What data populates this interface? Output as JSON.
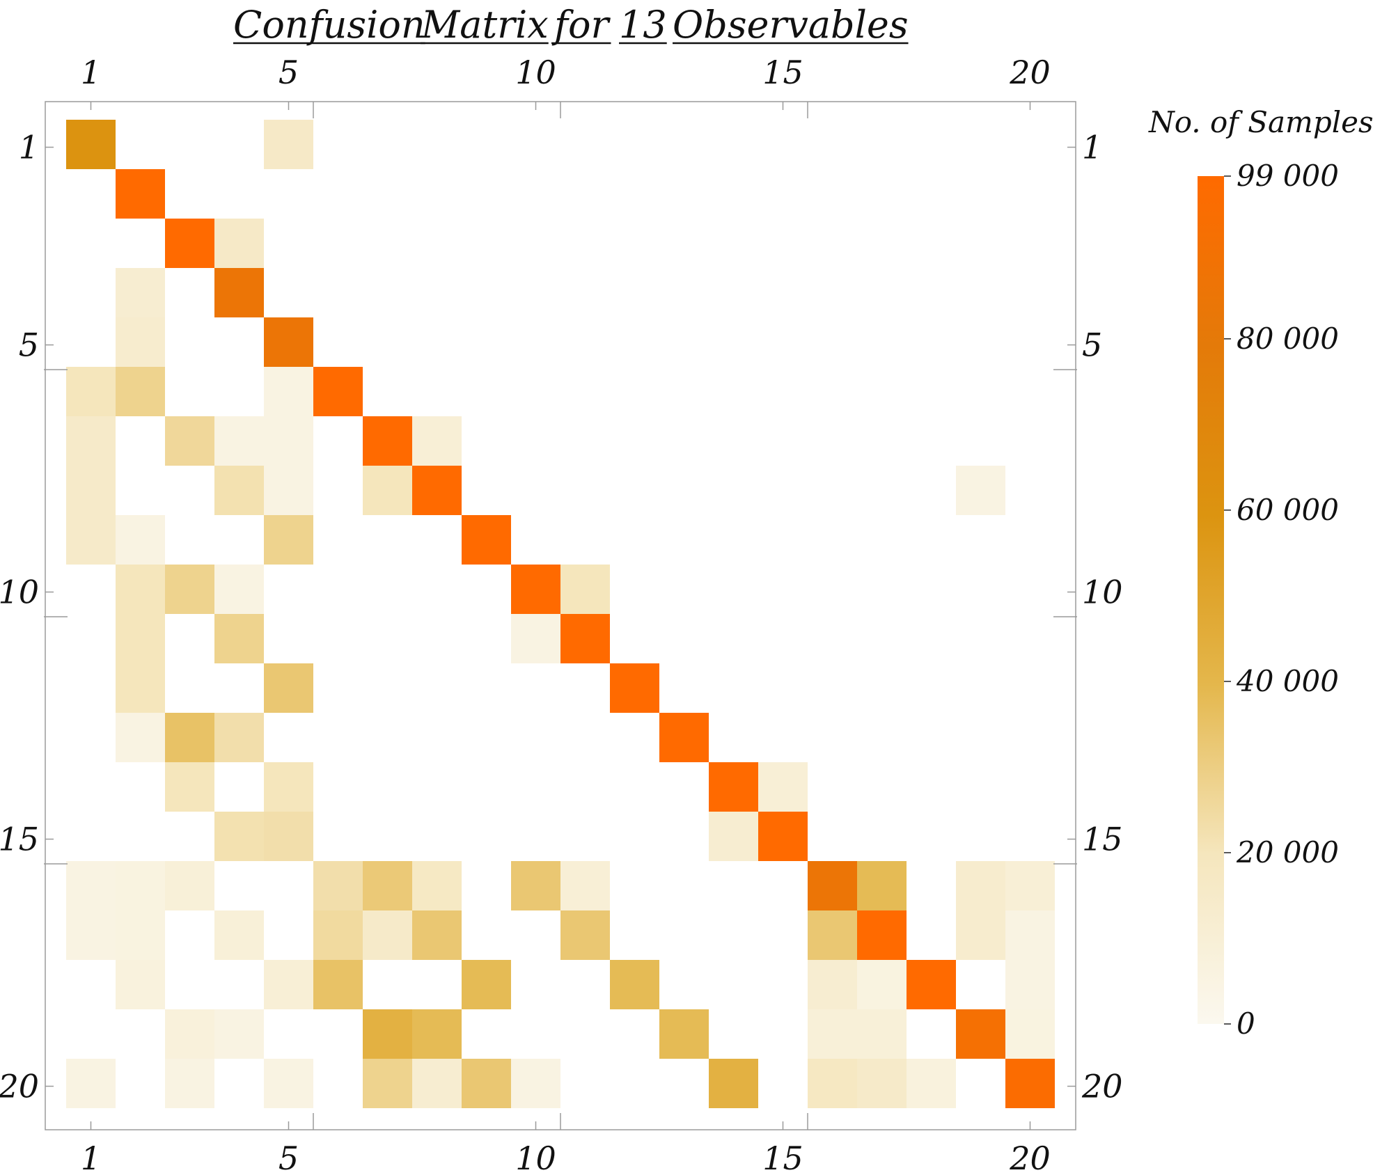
{
  "chart_data": {
    "type": "heatmap",
    "title_words": [
      "Confusion",
      "Matrix",
      "for",
      "13",
      "Observables"
    ],
    "n": 20,
    "axis_ticks": [
      1,
      5,
      10,
      15,
      20
    ],
    "axis_tick_labels": [
      "1",
      "5",
      "10",
      "15",
      "20"
    ],
    "colorbar": {
      "title": "No. of Samples",
      "min": 0,
      "max": 99000,
      "ticks": [
        0,
        20000,
        40000,
        60000,
        80000,
        99000
      ],
      "tick_labels": [
        "0",
        "20 000",
        "40 000",
        "60 000",
        "80 000",
        "99 000"
      ],
      "colors": [
        "#fbf8ef",
        "#f5e6bd",
        "#e4b74c",
        "#dc9410",
        "#e47a09",
        "#ff6a00"
      ]
    },
    "matrix": [
      [
        60000,
        0,
        0,
        0,
        16000,
        0,
        0,
        0,
        0,
        0,
        0,
        0,
        0,
        0,
        0,
        0,
        0,
        0,
        0,
        0
      ],
      [
        0,
        99000,
        0,
        0,
        0,
        0,
        0,
        0,
        0,
        0,
        0,
        0,
        0,
        0,
        0,
        0,
        0,
        0,
        0,
        0
      ],
      [
        0,
        0,
        99000,
        16000,
        0,
        0,
        0,
        0,
        0,
        0,
        0,
        0,
        0,
        0,
        0,
        0,
        0,
        0,
        0,
        0
      ],
      [
        0,
        12000,
        0,
        85000,
        0,
        0,
        0,
        0,
        0,
        0,
        0,
        0,
        0,
        0,
        0,
        0,
        0,
        0,
        0,
        0
      ],
      [
        0,
        13000,
        0,
        0,
        85000,
        0,
        0,
        0,
        0,
        0,
        0,
        0,
        0,
        0,
        0,
        0,
        0,
        0,
        0,
        0
      ],
      [
        20000,
        28000,
        0,
        0,
        5000,
        99000,
        0,
        0,
        0,
        0,
        0,
        0,
        0,
        0,
        0,
        0,
        0,
        0,
        0,
        0
      ],
      [
        15000,
        0,
        26000,
        5000,
        5000,
        0,
        99000,
        10000,
        0,
        0,
        0,
        0,
        0,
        0,
        0,
        0,
        0,
        0,
        0,
        0
      ],
      [
        15000,
        0,
        0,
        22000,
        5000,
        0,
        20000,
        99000,
        0,
        0,
        0,
        0,
        0,
        0,
        0,
        0,
        0,
        0,
        5000,
        0
      ],
      [
        15000,
        5000,
        0,
        0,
        28000,
        0,
        0,
        0,
        99000,
        0,
        0,
        0,
        0,
        0,
        0,
        0,
        0,
        0,
        0,
        0
      ],
      [
        0,
        20000,
        28000,
        5000,
        0,
        0,
        0,
        0,
        0,
        99000,
        20000,
        0,
        0,
        0,
        0,
        0,
        0,
        0,
        0,
        0
      ],
      [
        0,
        20000,
        0,
        28000,
        0,
        0,
        0,
        0,
        0,
        5000,
        99000,
        0,
        0,
        0,
        0,
        0,
        0,
        0,
        0,
        0
      ],
      [
        0,
        20000,
        0,
        0,
        33000,
        0,
        0,
        0,
        0,
        0,
        0,
        99000,
        0,
        0,
        0,
        0,
        0,
        0,
        0,
        0
      ],
      [
        0,
        5000,
        35000,
        23000,
        0,
        0,
        0,
        0,
        0,
        0,
        0,
        0,
        99000,
        0,
        0,
        0,
        0,
        0,
        0,
        0
      ],
      [
        0,
        0,
        20000,
        0,
        20000,
        0,
        0,
        0,
        0,
        0,
        0,
        0,
        0,
        99000,
        10000,
        0,
        0,
        0,
        0,
        0
      ],
      [
        0,
        0,
        0,
        22000,
        23000,
        0,
        0,
        0,
        0,
        0,
        0,
        0,
        0,
        12000,
        99000,
        0,
        0,
        0,
        0,
        0
      ],
      [
        5000,
        6000,
        9000,
        0,
        0,
        23000,
        32000,
        17000,
        0,
        33000,
        10000,
        0,
        0,
        0,
        0,
        85000,
        38000,
        0,
        13000,
        10000
      ],
      [
        5000,
        6000,
        0,
        9000,
        0,
        25000,
        15000,
        33000,
        0,
        0,
        33000,
        0,
        0,
        0,
        0,
        33000,
        99000,
        0,
        13000,
        5000
      ],
      [
        0,
        7000,
        0,
        0,
        10000,
        35000,
        0,
        0,
        38000,
        0,
        0,
        38000,
        0,
        0,
        0,
        12000,
        6000,
        99000,
        0,
        5000
      ],
      [
        0,
        0,
        8000,
        5000,
        0,
        0,
        43000,
        38000,
        0,
        0,
        0,
        0,
        38000,
        0,
        0,
        9000,
        9000,
        0,
        92000,
        6000
      ],
      [
        5000,
        0,
        5000,
        0,
        5000,
        0,
        28000,
        12000,
        33000,
        5000,
        0,
        0,
        0,
        43000,
        0,
        18000,
        15000,
        7000,
        0,
        96000
      ]
    ]
  }
}
